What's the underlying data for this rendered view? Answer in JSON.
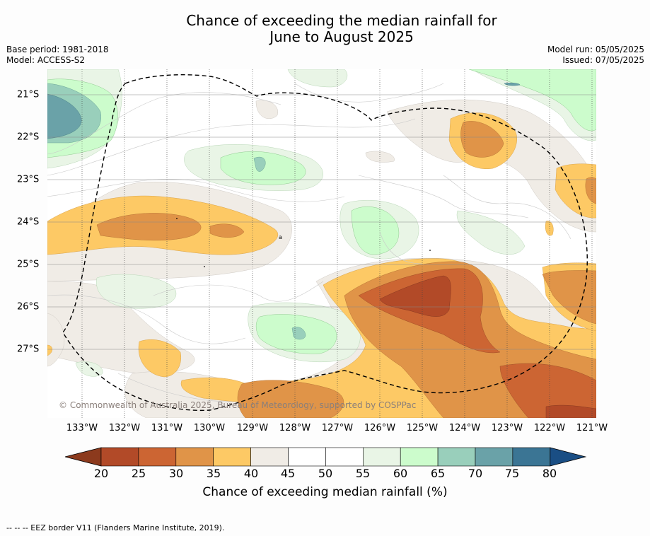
{
  "title_line1": "Chance of exceeding the median rainfall for",
  "title_line2": "June to August 2025",
  "base_period": "Base period: 1981-2018",
  "model": "Model: ACCESS-S2",
  "model_run": "Model run: 05/05/2025",
  "issued": "Issued: 07/05/2025",
  "copyright": "© Commonwealth of Australia 2025, Bureau of Meteorology, supported by COSPPac",
  "lat_labels": [
    "21°S",
    "22°S",
    "23°S",
    "24°S",
    "25°S",
    "26°S",
    "27°S"
  ],
  "lon_labels": [
    "133°W",
    "132°W",
    "131°W",
    "130°W",
    "129°W",
    "128°W",
    "127°W",
    "126°W",
    "125°W",
    "124°W",
    "123°W",
    "122°W",
    "121°W"
  ],
  "colorbar": {
    "ticks": [
      "20",
      "25",
      "30",
      "35",
      "40",
      "45",
      "50",
      "55",
      "60",
      "65",
      "70",
      "75",
      "80"
    ],
    "colors": [
      "#8c3a1d",
      "#b24a28",
      "#cc6533",
      "#e09448",
      "#fdc965",
      "#f0ece6",
      "#ffffff",
      "#ffffff",
      "#e9f5e6",
      "#ccfccc",
      "#99cfbb",
      "#6aa2a8",
      "#3b7594",
      "#1a4e84"
    ],
    "label": "Chance of exceeding median rainfall (%)"
  },
  "footer": "--  --  -- EEZ border V11 (Flanders Marine Institute, 2019)."
}
